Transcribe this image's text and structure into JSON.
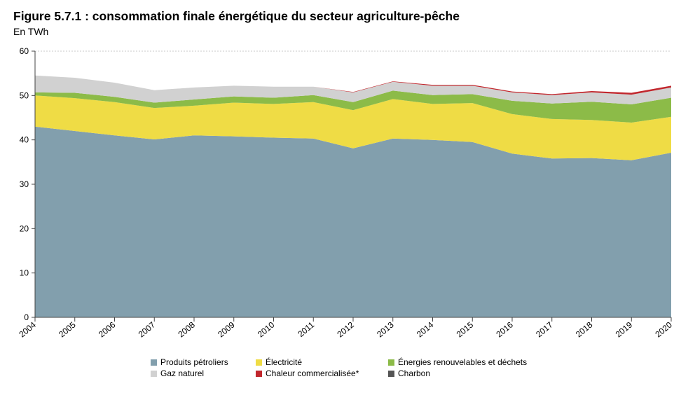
{
  "title": "Figure 5.7.1 : consommation finale énergétique du secteur agriculture-pêche",
  "subtitle": "En TWh",
  "chart_data": {
    "type": "area",
    "stacked": true,
    "x": [
      "2004",
      "2005",
      "2006",
      "2007",
      "2008",
      "2009",
      "2010",
      "2011",
      "2012",
      "2013",
      "2014",
      "2015",
      "2016",
      "2017",
      "2018",
      "2019",
      "2020"
    ],
    "ylim": [
      0,
      60
    ],
    "yticks": [
      0,
      10,
      20,
      30,
      40,
      50,
      60
    ],
    "grid": "top-dashed",
    "legend_position": "bottom",
    "series": [
      {
        "name": "Produits pétroliers",
        "color": "#829fad",
        "values": [
          43.0,
          42.0,
          41.0,
          40.1,
          41.0,
          40.8,
          40.5,
          40.3,
          38.1,
          40.3,
          40.0,
          39.5,
          36.9,
          35.8,
          35.9,
          35.4,
          37.1
        ]
      },
      {
        "name": "Électricité",
        "color": "#efdc45",
        "values": [
          7.0,
          7.4,
          7.5,
          7.1,
          6.7,
          7.6,
          7.6,
          8.2,
          8.6,
          8.9,
          8.1,
          8.8,
          8.9,
          8.9,
          8.6,
          8.5,
          8.1
        ]
      },
      {
        "name": "Énergies renouvelables et déchets",
        "color": "#8cbb48",
        "values": [
          0.7,
          1.2,
          1.2,
          1.2,
          1.4,
          1.4,
          1.4,
          1.6,
          1.8,
          1.9,
          2.0,
          2.0,
          3.0,
          3.5,
          4.1,
          4.1,
          4.3
        ]
      },
      {
        "name": "Gaz naturel",
        "color": "#d1d1d1",
        "values": [
          3.8,
          3.4,
          3.2,
          2.8,
          2.7,
          2.4,
          2.5,
          1.9,
          2.2,
          2.0,
          2.1,
          1.9,
          1.9,
          1.9,
          2.1,
          2.2,
          2.3
        ]
      },
      {
        "name": "Chaleur commercialisée*",
        "color": "#c1272d",
        "values": [
          0,
          0,
          0,
          0,
          0,
          0,
          0,
          0,
          0.1,
          0.1,
          0.2,
          0.2,
          0.2,
          0.2,
          0.3,
          0.4,
          0.4
        ]
      },
      {
        "name": "Charbon",
        "color": "#555555",
        "values": [
          0,
          0,
          0,
          0,
          0,
          0,
          0,
          0,
          0,
          0,
          0,
          0,
          0,
          0,
          0,
          0,
          0
        ]
      }
    ]
  }
}
